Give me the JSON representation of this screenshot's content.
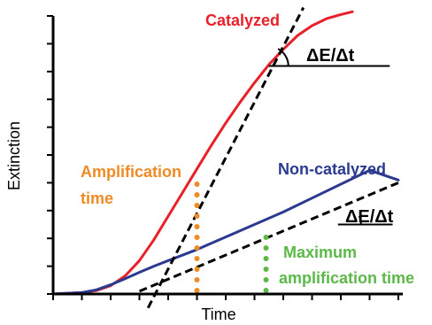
{
  "chart_data": {
    "type": "line",
    "xlabel": "Time",
    "ylabel": "Extinction",
    "xlim": [
      0,
      12
    ],
    "ylim": [
      0,
      10
    ],
    "grid": false,
    "series": [
      {
        "name": "Catalyzed",
        "color": "#e8202a",
        "x": [
          0,
          1,
          1.5,
          2,
          2.5,
          3,
          3.5,
          4,
          4.5,
          5,
          5.5,
          6,
          6.5,
          7,
          7.5,
          8,
          8.5,
          9,
          9.5,
          10,
          10.4
        ],
        "y": [
          0,
          0.05,
          0.12,
          0.3,
          0.65,
          1.2,
          1.95,
          2.8,
          3.65,
          4.5,
          5.35,
          6.15,
          6.9,
          7.6,
          8.25,
          8.8,
          9.3,
          9.65,
          9.9,
          10.05,
          10.15
        ]
      },
      {
        "name": "Non-catalyzed",
        "color": "#2b3a8f",
        "x": [
          0,
          1,
          1.5,
          2,
          2.5,
          3,
          3.5,
          4,
          5,
          6,
          7,
          8,
          9,
          10,
          11,
          12
        ],
        "y": [
          0,
          0.05,
          0.15,
          0.33,
          0.55,
          0.78,
          1.0,
          1.2,
          1.6,
          2.05,
          2.5,
          2.95,
          3.45,
          3.95,
          4.45,
          4.1
        ]
      }
    ],
    "tangents": [
      {
        "x": [
          3.3,
          8.7
        ],
        "y": [
          -0.5,
          10.3
        ],
        "color": "#000000"
      },
      {
        "x": [
          3.0,
          12.0
        ],
        "y": [
          0.1,
          4.0
        ],
        "color": "#000000"
      }
    ],
    "slope_markers": [
      {
        "label": "ΔE/Δt",
        "x": [
          7.5,
          11.7
        ],
        "y": 8.2
      },
      {
        "label": "ΔE/Δt",
        "x": [
          9.9,
          11.8
        ],
        "y": 2.5
      }
    ],
    "vlines": [
      {
        "x": 5.0,
        "y": 4.0,
        "color": "#f08a24"
      },
      {
        "x": 7.4,
        "y": 2.15,
        "color": "#5cb848"
      }
    ],
    "annotations": [
      {
        "text": "Catalyzed",
        "color": "#e8202a"
      },
      {
        "text": "Non-catalyzed",
        "color": "#2b3a8f"
      },
      {
        "text": "Amplification",
        "color": "#f08a24"
      },
      {
        "text": "time",
        "color": "#f08a24"
      },
      {
        "text": "Maximum",
        "color": "#5cb848"
      },
      {
        "text": "amplification time",
        "color": "#5cb848"
      }
    ]
  }
}
